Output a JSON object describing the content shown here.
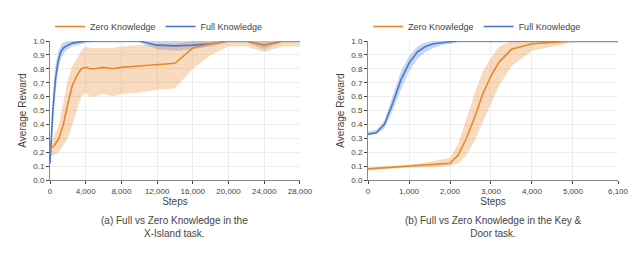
{
  "chart_data": [
    {
      "type": "line",
      "title": "(a) Full vs Zero Knowledge in the\nX-Island task.",
      "xlabel": "Steps",
      "ylabel": "Average Reward",
      "xlim": [
        0,
        28000
      ],
      "xticks": [
        0,
        {
          "value": 4000,
          "label": "4,000"
        },
        {
          "value": 8000,
          "label": "8,000"
        },
        {
          "value": 12000,
          "label": "12,000"
        },
        {
          "value": 16000,
          "label": "16,000"
        },
        {
          "value": 20000,
          "label": "20,000"
        },
        {
          "value": 24000,
          "label": "24,000"
        },
        {
          "value": 28000,
          "label": "28,000"
        }
      ],
      "ylim": [
        0.0,
        1.0
      ],
      "yticks": [
        {
          "value": 0.0,
          "label": "0.0"
        },
        0.1,
        0.2,
        0.3,
        0.4,
        0.5,
        0.6,
        0.7,
        0.8,
        0.9,
        {
          "value": 1.0,
          "label": "1.0"
        }
      ],
      "grid": true,
      "legend": "top left",
      "series": [
        {
          "name": "Full Knowledge",
          "color": "#4878cf",
          "x": [
            0,
            300,
            600,
            900,
            1200,
            1500,
            2000,
            2500,
            3000,
            3500,
            4000,
            5000,
            6000,
            7000,
            8000,
            10000,
            12000,
            14000,
            16000,
            18000,
            20000,
            22000,
            24000,
            26000,
            28000
          ],
          "values": [
            0.12,
            0.48,
            0.72,
            0.85,
            0.92,
            0.95,
            0.97,
            0.985,
            0.99,
            0.995,
            0.999,
            1.0,
            1.0,
            1.0,
            1.0,
            1.0,
            0.97,
            0.965,
            0.97,
            0.98,
            1.0,
            1.0,
            0.97,
            1.0,
            1.0
          ],
          "lower": [
            0.1,
            0.4,
            0.62,
            0.78,
            0.87,
            0.91,
            0.94,
            0.96,
            0.97,
            0.98,
            0.985,
            0.99,
            0.99,
            0.99,
            0.99,
            0.99,
            0.94,
            0.93,
            0.94,
            0.96,
            0.99,
            0.99,
            0.94,
            0.99,
            0.99
          ],
          "upper": [
            0.15,
            0.58,
            0.82,
            0.92,
            0.97,
            0.99,
            1.0,
            1.0,
            1.0,
            1.0,
            1.0,
            1.0,
            1.0,
            1.0,
            1.0,
            1.0,
            1.0,
            1.0,
            1.0,
            1.0,
            1.0,
            1.0,
            1.0,
            1.0,
            1.0
          ]
        },
        {
          "name": "Zero Knowledge",
          "color": "#e8882a",
          "x": [
            0,
            500,
            1000,
            1500,
            2000,
            2500,
            3000,
            3500,
            4000,
            4500,
            5000,
            6000,
            7000,
            8000,
            10000,
            12000,
            14000,
            16000,
            18000,
            20000,
            22000,
            24000,
            26000,
            28000
          ],
          "values": [
            0.22,
            0.25,
            0.3,
            0.4,
            0.55,
            0.68,
            0.75,
            0.8,
            0.81,
            0.8,
            0.8,
            0.81,
            0.8,
            0.81,
            0.82,
            0.83,
            0.84,
            0.95,
            0.98,
            1.0,
            1.0,
            0.97,
            1.0,
            1.0
          ],
          "lower": [
            0.17,
            0.18,
            0.2,
            0.25,
            0.3,
            0.4,
            0.5,
            0.6,
            0.63,
            0.6,
            0.6,
            0.62,
            0.6,
            0.62,
            0.63,
            0.65,
            0.66,
            0.8,
            0.9,
            0.96,
            0.96,
            0.92,
            0.96,
            0.96
          ],
          "upper": [
            0.26,
            0.32,
            0.4,
            0.55,
            0.72,
            0.82,
            0.87,
            0.93,
            0.96,
            0.95,
            0.95,
            0.95,
            0.95,
            0.96,
            0.97,
            0.98,
            0.98,
            1.0,
            1.0,
            1.0,
            1.0,
            1.0,
            1.0,
            1.0
          ]
        }
      ]
    },
    {
      "type": "line",
      "title": "(b) Full vs Zero Knowledge in the Key &\nDoor task.",
      "xlabel": "Steps",
      "ylabel": "Average Reward",
      "xlim": [
        0,
        6100
      ],
      "xticks": [
        0,
        {
          "value": 1000,
          "label": "1,000"
        },
        {
          "value": 2000,
          "label": "2,000"
        },
        {
          "value": 3000,
          "label": "3,000"
        },
        {
          "value": 4000,
          "label": "4,000"
        },
        {
          "value": 5000,
          "label": "5,000"
        },
        {
          "value": 6100,
          "label": "6,100"
        }
      ],
      "ylim": [
        0.0,
        1.0
      ],
      "yticks": [
        {
          "value": 0.0,
          "label": "0.0"
        },
        0.1,
        0.2,
        0.3,
        0.4,
        0.5,
        0.6,
        0.7,
        0.8,
        0.9,
        {
          "value": 1.0,
          "label": "1.0"
        }
      ],
      "grid": true,
      "legend": "top left",
      "series": [
        {
          "name": "Full Knowledge",
          "color": "#4878cf",
          "x": [
            0,
            200,
            400,
            600,
            800,
            1000,
            1200,
            1400,
            1600,
            1800,
            2000,
            2200,
            2500,
            3000,
            3500,
            4000,
            5000,
            6100
          ],
          "values": [
            0.33,
            0.34,
            0.4,
            0.55,
            0.72,
            0.84,
            0.92,
            0.96,
            0.98,
            0.99,
            0.995,
            1.0,
            1.0,
            1.0,
            1.0,
            1.0,
            1.0,
            1.0
          ],
          "lower": [
            0.32,
            0.33,
            0.37,
            0.5,
            0.65,
            0.78,
            0.87,
            0.92,
            0.95,
            0.97,
            0.98,
            0.99,
            0.99,
            0.99,
            0.99,
            0.99,
            0.99,
            0.99
          ],
          "upper": [
            0.35,
            0.36,
            0.43,
            0.6,
            0.78,
            0.89,
            0.96,
            0.99,
            1.0,
            1.0,
            1.0,
            1.0,
            1.0,
            1.0,
            1.0,
            1.0,
            1.0,
            1.0
          ]
        },
        {
          "name": "Zero Knowledge",
          "color": "#e8882a",
          "x": [
            0,
            500,
            1000,
            1500,
            2000,
            2200,
            2400,
            2600,
            2800,
            3000,
            3200,
            3500,
            4000,
            4500,
            5000,
            5500,
            6100
          ],
          "values": [
            0.08,
            0.09,
            0.1,
            0.11,
            0.12,
            0.18,
            0.3,
            0.45,
            0.62,
            0.75,
            0.85,
            0.94,
            0.98,
            0.99,
            1.0,
            1.0,
            1.0
          ],
          "lower": [
            0.07,
            0.08,
            0.09,
            0.09,
            0.1,
            0.12,
            0.18,
            0.28,
            0.42,
            0.55,
            0.68,
            0.82,
            0.93,
            0.96,
            0.99,
            0.99,
            0.99
          ],
          "upper": [
            0.09,
            0.1,
            0.11,
            0.13,
            0.16,
            0.26,
            0.44,
            0.62,
            0.78,
            0.88,
            0.96,
            1.0,
            1.0,
            1.0,
            1.0,
            1.0,
            1.0
          ]
        }
      ]
    }
  ]
}
